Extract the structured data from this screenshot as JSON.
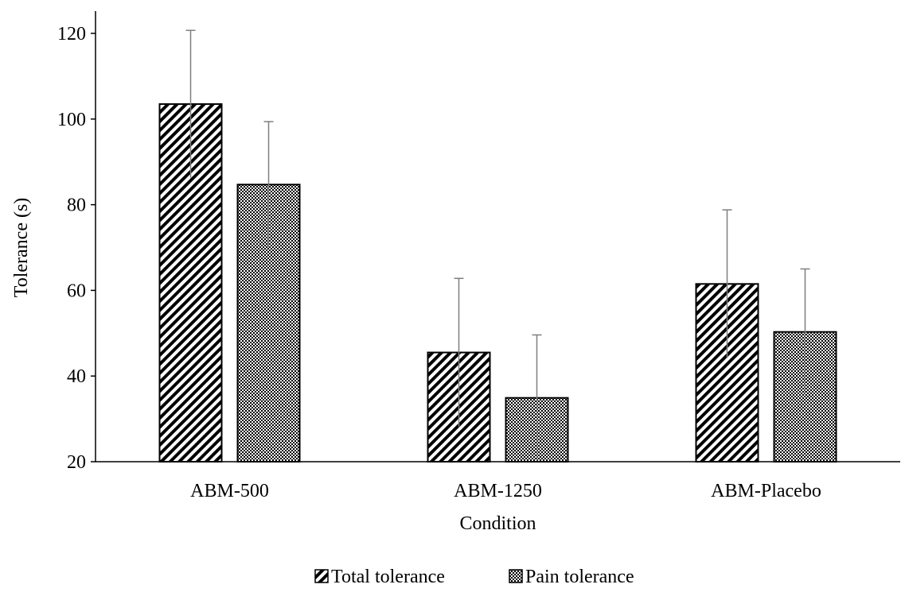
{
  "chart_data": {
    "type": "bar",
    "title": "",
    "xlabel": "Condition",
    "ylabel": "Tolerance (s)",
    "categories": [
      "ABM-500",
      "ABM-1250",
      "ABM-Placebo"
    ],
    "ylim": [
      20,
      120
    ],
    "yticks": [
      "20",
      "40",
      "60",
      "80",
      "100",
      "120"
    ],
    "grid": false,
    "legend_position": "bottom",
    "series": [
      {
        "name": "Total tolerance",
        "values": [
          103.5,
          45.5,
          61.5
        ],
        "error": [
          17.2,
          17.3,
          17.3
        ],
        "pattern": "diagonal-stripes"
      },
      {
        "name": "Pain tolerance",
        "values": [
          84.7,
          34.9,
          50.3
        ],
        "error": [
          14.7,
          14.7,
          14.7
        ],
        "pattern": "checkerboard"
      }
    ]
  }
}
